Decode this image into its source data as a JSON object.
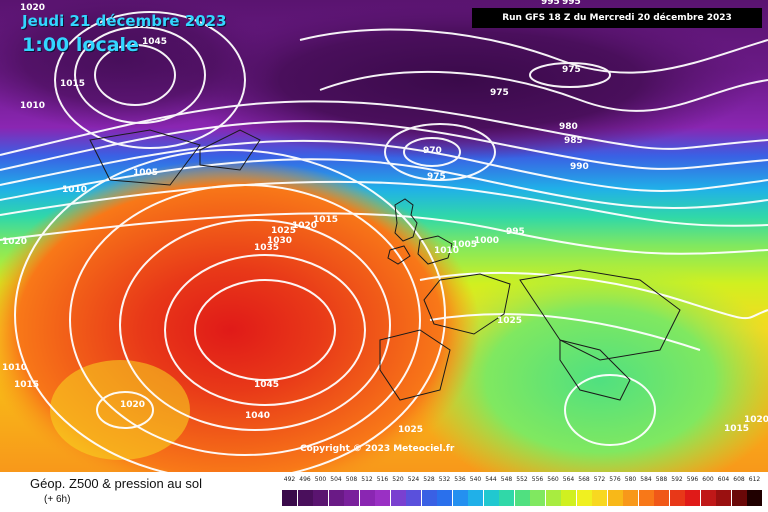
{
  "header": {
    "date": "Jeudi 21 décembre 2023",
    "time": "1:00 locale",
    "run": "Run GFS 18 Z du Mercredi 20 décembre 2023"
  },
  "footer": {
    "title": "Géop. Z500 & pression au sol",
    "subtitle": "(+ 6h)"
  },
  "copyright": "Copyright © 2023 Meteociel.fr",
  "legend": {
    "values": [
      "492",
      "496",
      "500",
      "504",
      "508",
      "512",
      "516",
      "520",
      "524",
      "528",
      "532",
      "536",
      "540",
      "544",
      "548",
      "552",
      "556",
      "560",
      "564",
      "568",
      "572",
      "576",
      "580",
      "584",
      "588",
      "592",
      "596",
      "600",
      "604",
      "608",
      "612"
    ],
    "colors": [
      "#3a0a4a",
      "#4a0f5c",
      "#5a1470",
      "#6a1a86",
      "#7a209c",
      "#8a26b2",
      "#9a30c4",
      "#7a40d0",
      "#5a50dc",
      "#3a60e4",
      "#2a70ec",
      "#2490f0",
      "#20b0e8",
      "#20c8d0",
      "#30d8a8",
      "#50e080",
      "#80e860",
      "#a8ec40",
      "#d0f020",
      "#f0f020",
      "#f8d820",
      "#f8b818",
      "#f8981a",
      "#f87818",
      "#f05818",
      "#e83818",
      "#e01a18",
      "#c01818",
      "#9a1010",
      "#6a0808",
      "#200000"
    ]
  },
  "pressure_labels": [
    {
      "text": "1020"
    },
    {
      "text": "1045"
    },
    {
      "text": "1015"
    },
    {
      "text": "1010"
    },
    {
      "text": "1005"
    },
    {
      "text": "1010"
    },
    {
      "text": "1020"
    },
    {
      "text": "975"
    },
    {
      "text": "975"
    },
    {
      "text": "980"
    },
    {
      "text": "985"
    },
    {
      "text": "970"
    },
    {
      "text": "975"
    },
    {
      "text": "990"
    },
    {
      "text": "995"
    },
    {
      "text": "1000"
    },
    {
      "text": "1005"
    },
    {
      "text": "1010"
    },
    {
      "text": "1015"
    },
    {
      "text": "1020"
    },
    {
      "text": "1025"
    },
    {
      "text": "1030"
    },
    {
      "text": "1035"
    },
    {
      "text": "1025"
    },
    {
      "text": "1045"
    },
    {
      "text": "1040"
    },
    {
      "text": "1025"
    },
    {
      "text": "1020"
    },
    {
      "text": "1015"
    },
    {
      "text": "1010"
    },
    {
      "text": "1020"
    },
    {
      "text": "1015"
    },
    {
      "text": "995"
    },
    {
      "text": "995"
    }
  ]
}
